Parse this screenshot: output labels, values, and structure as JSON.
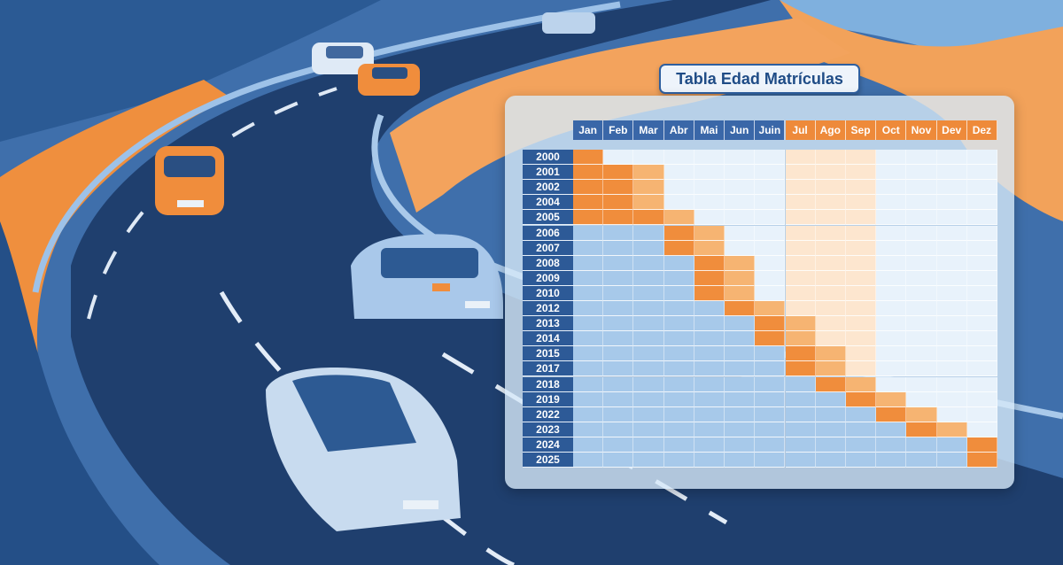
{
  "title": "Tabla Edad Matrículas",
  "months": [
    "Jan",
    "Feb",
    "Mar",
    "Abr",
    "Mai",
    "Jun",
    "Juin",
    "Jul",
    "Ago",
    "Sep",
    "Oct",
    "Nov",
    "Dev",
    "Dez"
  ],
  "years": [
    "2000",
    "2001",
    "2002",
    "2004",
    "2005",
    "2006",
    "2007",
    "2008",
    "2009",
    "2010",
    "2012",
    "2013",
    "2014",
    "2015",
    "2017",
    "2018",
    "2019",
    "2022",
    "2023",
    "2024",
    "2025"
  ],
  "highlight_months": [
    1,
    2,
    2,
    2,
    3,
    4,
    4,
    5,
    5,
    5,
    6,
    7,
    7,
    8,
    8,
    9,
    10,
    11,
    12,
    14,
    14
  ],
  "colors": {
    "header_blue": "#3a67a8",
    "header_orange": "#ee8a3a",
    "highlight": "#f08d3c",
    "highlight_light": "#f6b472",
    "blue_cell": "#a7c9ea",
    "orange_cell": "#fde6cf",
    "empty_cell": "#e8f2fb"
  }
}
